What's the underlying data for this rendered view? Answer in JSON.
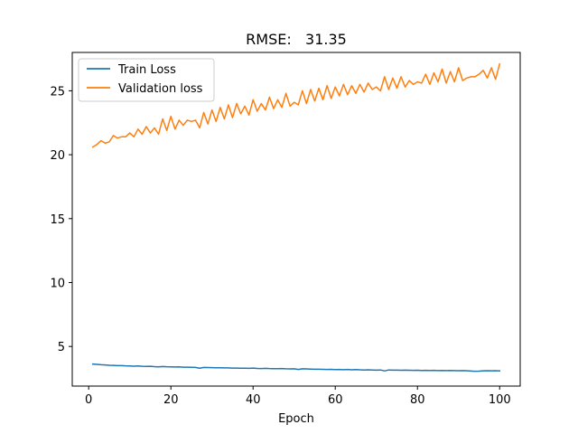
{
  "chart_data": {
    "type": "line",
    "title": "RMSE:   31.35",
    "xlabel": "Epoch",
    "ylabel": "",
    "xlim": [
      -4,
      105
    ],
    "ylim": [
      1.9,
      28.0
    ],
    "xticks": [
      0,
      20,
      40,
      60,
      80,
      100
    ],
    "yticks": [
      5,
      10,
      15,
      20,
      25
    ],
    "grid": false,
    "legend_position": "top-left",
    "series": [
      {
        "name": "Train Loss",
        "color": "#1f77b4",
        "x": [
          1,
          2,
          3,
          4,
          5,
          6,
          7,
          8,
          9,
          10,
          11,
          12,
          13,
          14,
          15,
          16,
          17,
          18,
          19,
          20,
          21,
          22,
          23,
          24,
          25,
          26,
          27,
          28,
          29,
          30,
          31,
          32,
          33,
          34,
          35,
          36,
          37,
          38,
          39,
          40,
          41,
          42,
          43,
          44,
          45,
          46,
          47,
          48,
          49,
          50,
          51,
          52,
          53,
          54,
          55,
          56,
          57,
          58,
          59,
          60,
          61,
          62,
          63,
          64,
          65,
          66,
          67,
          68,
          69,
          70,
          71,
          72,
          73,
          74,
          75,
          76,
          77,
          78,
          79,
          80,
          81,
          82,
          83,
          84,
          85,
          86,
          87,
          88,
          89,
          90,
          91,
          92,
          93,
          94,
          95,
          96,
          97,
          98,
          99,
          100
        ],
        "values": [
          3.62,
          3.6,
          3.57,
          3.55,
          3.53,
          3.52,
          3.5,
          3.5,
          3.48,
          3.47,
          3.46,
          3.47,
          3.45,
          3.44,
          3.45,
          3.42,
          3.4,
          3.43,
          3.41,
          3.4,
          3.39,
          3.4,
          3.38,
          3.38,
          3.37,
          3.36,
          3.3,
          3.36,
          3.35,
          3.34,
          3.33,
          3.33,
          3.32,
          3.32,
          3.31,
          3.31,
          3.3,
          3.3,
          3.29,
          3.31,
          3.28,
          3.27,
          3.29,
          3.27,
          3.26,
          3.26,
          3.27,
          3.25,
          3.24,
          3.25,
          3.2,
          3.25,
          3.24,
          3.23,
          3.22,
          3.22,
          3.21,
          3.2,
          3.21,
          3.19,
          3.2,
          3.18,
          3.2,
          3.17,
          3.19,
          3.17,
          3.16,
          3.17,
          3.16,
          3.15,
          3.16,
          3.09,
          3.16,
          3.15,
          3.15,
          3.14,
          3.15,
          3.14,
          3.13,
          3.14,
          3.12,
          3.13,
          3.12,
          3.13,
          3.11,
          3.12,
          3.11,
          3.12,
          3.11,
          3.1,
          3.11,
          3.1,
          3.08,
          3.06,
          3.07,
          3.09,
          3.1,
          3.09,
          3.1,
          3.09
        ]
      },
      {
        "name": "Validation loss",
        "color": "#ff7f0e",
        "x": [
          1,
          2,
          3,
          4,
          5,
          6,
          7,
          8,
          9,
          10,
          11,
          12,
          13,
          14,
          15,
          16,
          17,
          18,
          19,
          20,
          21,
          22,
          23,
          24,
          25,
          26,
          27,
          28,
          29,
          30,
          31,
          32,
          33,
          34,
          35,
          36,
          37,
          38,
          39,
          40,
          41,
          42,
          43,
          44,
          45,
          46,
          47,
          48,
          49,
          50,
          51,
          52,
          53,
          54,
          55,
          56,
          57,
          58,
          59,
          60,
          61,
          62,
          63,
          64,
          65,
          66,
          67,
          68,
          69,
          70,
          71,
          72,
          73,
          74,
          75,
          76,
          77,
          78,
          79,
          80,
          81,
          82,
          83,
          84,
          85,
          86,
          87,
          88,
          89,
          90,
          91,
          92,
          93,
          94,
          95,
          96,
          97,
          98,
          99,
          100
        ],
        "values": [
          20.6,
          20.8,
          21.1,
          20.9,
          21.0,
          21.5,
          21.3,
          21.4,
          21.4,
          21.7,
          21.4,
          22.0,
          21.6,
          22.2,
          21.7,
          22.1,
          21.6,
          22.8,
          21.9,
          23.0,
          22.0,
          22.7,
          22.3,
          22.7,
          22.6,
          22.7,
          22.1,
          23.3,
          22.4,
          23.5,
          22.6,
          23.7,
          22.8,
          23.9,
          22.9,
          24.0,
          23.2,
          23.8,
          23.1,
          24.3,
          23.4,
          24.0,
          23.5,
          24.5,
          23.6,
          24.3,
          23.7,
          24.8,
          23.8,
          24.1,
          23.9,
          25.0,
          24.0,
          25.1,
          24.2,
          25.2,
          24.3,
          25.4,
          24.4,
          25.3,
          24.6,
          25.5,
          24.7,
          25.4,
          24.8,
          25.5,
          24.9,
          25.6,
          25.1,
          25.3,
          25.0,
          26.1,
          25.1,
          26.0,
          25.2,
          26.1,
          25.3,
          25.8,
          25.5,
          25.7,
          25.6,
          26.3,
          25.5,
          26.4,
          25.7,
          26.7,
          25.6,
          26.5,
          25.7,
          26.8,
          25.8,
          26.0,
          26.1,
          26.1,
          26.3,
          26.6,
          26.0,
          26.8,
          25.9,
          27.1
        ]
      }
    ]
  }
}
